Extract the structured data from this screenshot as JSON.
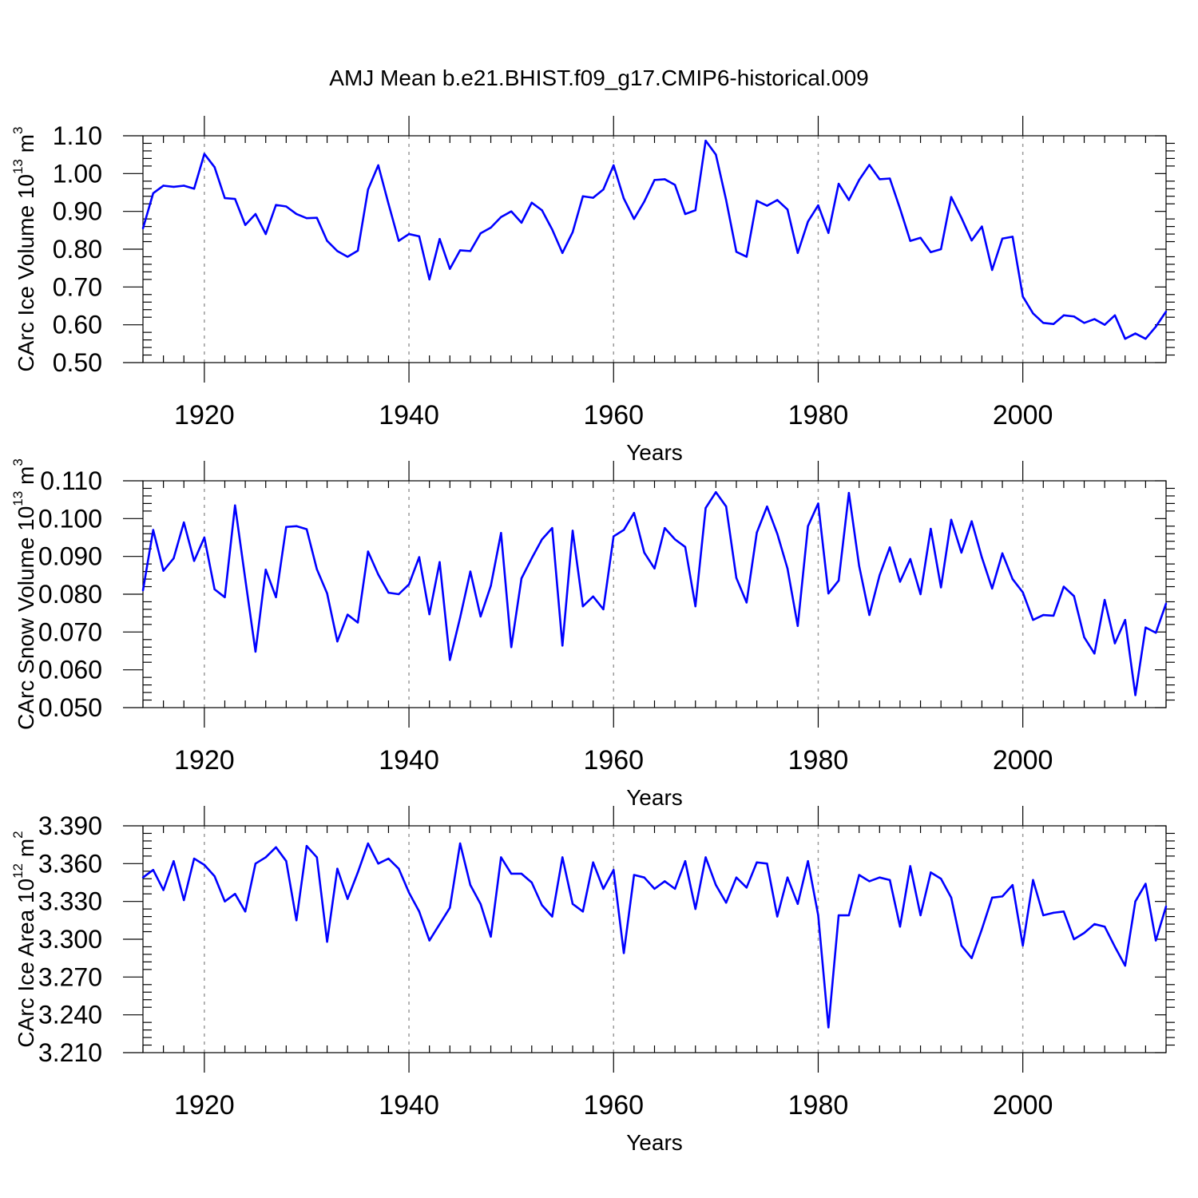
{
  "title": "AMJ Mean b.e21.BHIST.f09_g17.CMIP6-historical.009",
  "colors": {
    "line": "#0000ff",
    "grid": "#9a9a9a",
    "axis": "#000000"
  },
  "chart_data": [
    {
      "type": "line",
      "xlabel": "Years",
      "ylabel": "CArc Ice Volume 10",
      "ylabel_exp": "13",
      "ylabel_unit": " m",
      "ylabel_unit_exp": "3",
      "xlim": [
        1914,
        2014
      ],
      "ylim": [
        0.5,
        1.1
      ],
      "xticks": [
        1920,
        1940,
        1960,
        1980,
        2000
      ],
      "yticks": [
        "0.50",
        "0.60",
        "0.70",
        "0.80",
        "0.90",
        "1.00",
        "1.10"
      ],
      "x_start": 1914,
      "values": [
        0.855,
        0.948,
        0.968,
        0.965,
        0.968,
        0.96,
        1.052,
        1.017,
        0.935,
        0.933,
        0.864,
        0.893,
        0.84,
        0.917,
        0.913,
        0.893,
        0.882,
        0.883,
        0.822,
        0.795,
        0.78,
        0.796,
        0.958,
        1.022,
        0.92,
        0.822,
        0.84,
        0.834,
        0.72,
        0.827,
        0.748,
        0.797,
        0.795,
        0.842,
        0.857,
        0.885,
        0.9,
        0.87,
        0.923,
        0.903,
        0.852,
        0.79,
        0.845,
        0.94,
        0.936,
        0.958,
        1.022,
        0.934,
        0.88,
        0.926,
        0.983,
        0.985,
        0.97,
        0.893,
        0.903,
        1.087,
        1.05,
        0.93,
        0.793,
        0.78,
        0.928,
        0.915,
        0.93,
        0.905,
        0.79,
        0.873,
        0.916,
        0.843,
        0.973,
        0.93,
        0.983,
        1.023,
        0.985,
        0.987,
        0.907,
        0.822,
        0.83,
        0.792,
        0.8,
        0.938,
        0.883,
        0.823,
        0.86,
        0.745,
        0.828,
        0.833,
        0.675,
        0.63,
        0.605,
        0.602,
        0.625,
        0.622,
        0.605,
        0.615,
        0.6,
        0.625,
        0.563,
        0.577,
        0.563,
        0.595,
        0.635
      ]
    },
    {
      "type": "line",
      "xlabel": "Years",
      "ylabel": "CArc Snow Volume 10",
      "ylabel_exp": "13",
      "ylabel_unit": " m",
      "ylabel_unit_exp": "3",
      "xlim": [
        1914,
        2014
      ],
      "ylim": [
        0.05,
        0.11
      ],
      "xticks": [
        1920,
        1940,
        1960,
        1980,
        2000
      ],
      "yticks": [
        "0.050",
        "0.060",
        "0.070",
        "0.080",
        "0.090",
        "0.100",
        "0.110"
      ],
      "x_start": 1914,
      "values": [
        0.081,
        0.097,
        0.0862,
        0.0895,
        0.099,
        0.0888,
        0.095,
        0.0813,
        0.0792,
        0.1035,
        0.084,
        0.0648,
        0.0865,
        0.0792,
        0.0978,
        0.098,
        0.0972,
        0.0866,
        0.0802,
        0.0675,
        0.0746,
        0.0725,
        0.0913,
        0.0852,
        0.0804,
        0.08,
        0.0826,
        0.0898,
        0.0747,
        0.0885,
        0.0626,
        0.0738,
        0.086,
        0.0741,
        0.0822,
        0.0962,
        0.066,
        0.0842,
        0.0895,
        0.0945,
        0.0975,
        0.0664,
        0.0968,
        0.0768,
        0.0794,
        0.076,
        0.0953,
        0.097,
        0.1015,
        0.091,
        0.0868,
        0.0975,
        0.0945,
        0.0925,
        0.0768,
        0.1028,
        0.107,
        0.1032,
        0.0843,
        0.0778,
        0.0963,
        0.1032,
        0.096,
        0.0868,
        0.0716,
        0.098,
        0.104,
        0.0802,
        0.0836,
        0.1068,
        0.0875,
        0.0745,
        0.085,
        0.0924,
        0.0833,
        0.0893,
        0.08,
        0.0973,
        0.0818,
        0.0997,
        0.091,
        0.0993,
        0.0897,
        0.0815,
        0.0908,
        0.084,
        0.0805,
        0.0732,
        0.0745,
        0.0743,
        0.082,
        0.0795,
        0.0686,
        0.0643,
        0.0785,
        0.067,
        0.0732,
        0.0533,
        0.0712,
        0.0698,
        0.0775
      ]
    },
    {
      "type": "line",
      "xlabel": "Years",
      "ylabel": "CArc Ice Area 10",
      "ylabel_exp": "12",
      "ylabel_unit": " m",
      "ylabel_unit_exp": "2",
      "xlim": [
        1914,
        2014
      ],
      "ylim": [
        3.21,
        3.39
      ],
      "xticks": [
        1920,
        1940,
        1960,
        1980,
        2000
      ],
      "yticks": [
        "3.210",
        "3.240",
        "3.270",
        "3.300",
        "3.330",
        "3.360",
        "3.390"
      ],
      "x_start": 1914,
      "values": [
        3.349,
        3.355,
        3.339,
        3.362,
        3.331,
        3.364,
        3.359,
        3.35,
        3.33,
        3.336,
        3.322,
        3.36,
        3.365,
        3.373,
        3.362,
        3.315,
        3.374,
        3.365,
        3.298,
        3.356,
        3.332,
        3.353,
        3.376,
        3.36,
        3.364,
        3.356,
        3.337,
        3.322,
        3.299,
        3.312,
        3.325,
        3.376,
        3.343,
        3.328,
        3.302,
        3.365,
        3.352,
        3.352,
        3.345,
        3.327,
        3.318,
        3.365,
        3.328,
        3.322,
        3.361,
        3.34,
        3.355,
        3.289,
        3.351,
        3.349,
        3.34,
        3.346,
        3.34,
        3.362,
        3.324,
        3.365,
        3.343,
        3.329,
        3.349,
        3.341,
        3.361,
        3.36,
        3.318,
        3.349,
        3.328,
        3.362,
        3.319,
        3.23,
        3.319,
        3.319,
        3.351,
        3.346,
        3.349,
        3.347,
        3.31,
        3.358,
        3.319,
        3.353,
        3.348,
        3.333,
        3.295,
        3.285,
        3.308,
        3.333,
        3.334,
        3.343,
        3.295,
        3.347,
        3.319,
        3.321,
        3.322,
        3.3,
        3.305,
        3.312,
        3.31,
        3.294,
        3.279,
        3.33,
        3.344,
        3.299,
        3.326
      ]
    }
  ]
}
